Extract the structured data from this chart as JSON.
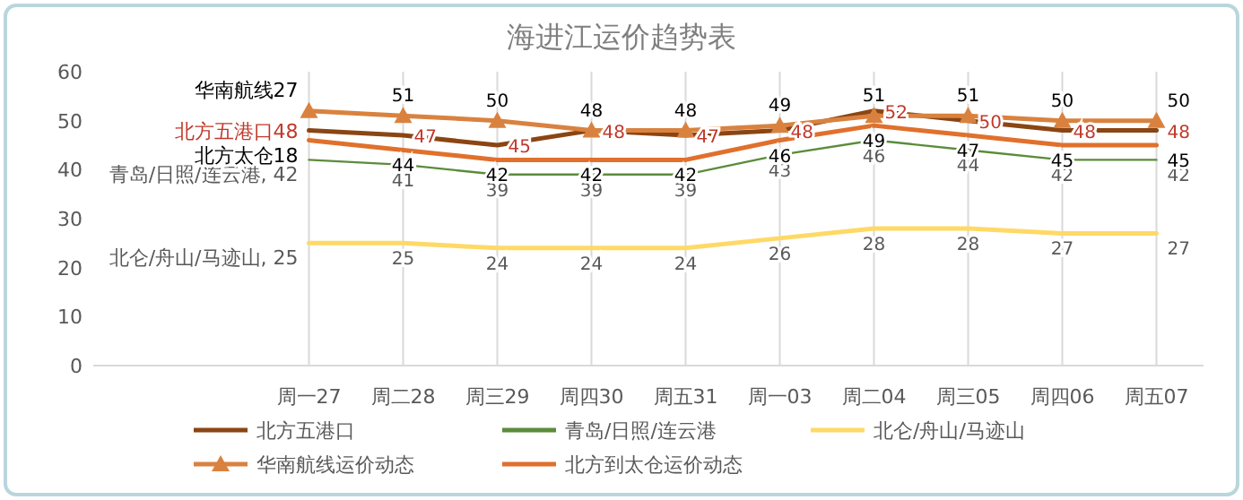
{
  "chart_data": {
    "type": "line",
    "title": "海进江运价趋势表",
    "categories": [
      "周一27",
      "周二28",
      "周三29",
      "周四30",
      "周五31",
      "周一03",
      "周二04",
      "周三05",
      "周四06",
      "周五07"
    ],
    "ylim": [
      0,
      60
    ],
    "yticks": [
      0,
      10,
      20,
      30,
      40,
      50,
      60
    ],
    "grid": "x",
    "legend": "bottom",
    "series": [
      {
        "name": "北方五港口",
        "color": "#8b4513",
        "values": [
          48,
          47,
          45,
          48,
          47,
          48,
          52,
          50,
          48,
          48
        ],
        "value_labels": [
          "北方五港口48",
          "47",
          "45",
          "48",
          "47",
          "48",
          "52",
          "50",
          "48",
          "48"
        ]
      },
      {
        "name": "青岛/日照/连云港",
        "color": "#5b8c3a",
        "values": [
          42,
          41,
          39,
          39,
          39,
          43,
          46,
          44,
          42,
          42
        ],
        "value_labels": [
          "青岛/日照/连云港, 42",
          "41",
          "39",
          "39",
          "39",
          "43",
          "46",
          "44",
          "42",
          "42"
        ]
      },
      {
        "name": "北仑/舟山/马迹山",
        "color": "#ffd966",
        "values": [
          25,
          25,
          24,
          24,
          24,
          26,
          28,
          28,
          27,
          27
        ],
        "value_labels": [
          "北仑/舟山/马迹山, 25",
          "25",
          "24",
          "24",
          "24",
          "26",
          "28",
          "28",
          "27",
          "27"
        ]
      },
      {
        "name": "华南航线运价动态",
        "color": "#d9823f",
        "marker": "triangle",
        "values": [
          52,
          51,
          50,
          48,
          48,
          49,
          51,
          51,
          50,
          50
        ],
        "value_labels": [
          "华南航线27",
          "51",
          "50",
          "48",
          "48",
          "49",
          "51",
          "51",
          "50",
          "50"
        ]
      },
      {
        "name": "北方到太仓运价动态",
        "color": "#e0702c",
        "values": [
          46,
          44,
          42,
          42,
          42,
          46,
          49,
          47,
          45,
          45
        ],
        "value_labels": [
          "北方太仓18",
          "44",
          "42",
          "42",
          "42",
          "46",
          "49",
          "47",
          "45",
          "45"
        ]
      }
    ]
  }
}
